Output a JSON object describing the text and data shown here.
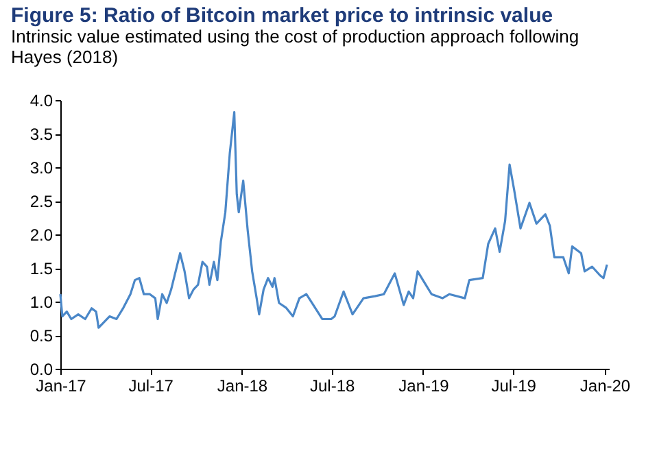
{
  "chart_data": {
    "type": "line",
    "title": "Figure 5: Ratio of Bitcoin market price to intrinsic value",
    "subtitle": "Intrinsic value estimated using the cost of production approach following Hayes (2018)",
    "x": [
      "2017-01-01",
      "2017-01-05",
      "2017-01-14",
      "2017-01-23",
      "2017-02-06",
      "2017-02-20",
      "2017-03-05",
      "2017-03-14",
      "2017-03-19",
      "2017-03-28",
      "2017-04-10",
      "2017-04-24",
      "2017-05-08",
      "2017-05-22",
      "2017-05-31",
      "2017-06-09",
      "2017-06-18",
      "2017-06-30",
      "2017-07-11",
      "2017-07-16",
      "2017-07-25",
      "2017-08-03",
      "2017-08-12",
      "2017-08-21",
      "2017-08-30",
      "2017-09-08",
      "2017-09-17",
      "2017-09-26",
      "2017-10-05",
      "2017-10-14",
      "2017-10-23",
      "2017-10-28",
      "2017-11-06",
      "2017-11-13",
      "2017-11-20",
      "2017-11-29",
      "2017-12-08",
      "2017-12-17",
      "2017-12-22",
      "2017-12-26",
      "2018-01-04",
      "2018-01-13",
      "2018-01-22",
      "2018-01-31",
      "2018-02-05",
      "2018-02-14",
      "2018-02-23",
      "2018-03-04",
      "2018-03-08",
      "2018-03-17",
      "2018-03-31",
      "2018-04-14",
      "2018-04-27",
      "2018-05-11",
      "2018-05-25",
      "2018-06-12",
      "2018-06-30",
      "2018-07-07",
      "2018-07-25",
      "2018-08-12",
      "2018-09-03",
      "2018-09-26",
      "2018-10-14",
      "2018-11-05",
      "2018-11-23",
      "2018-12-03",
      "2018-12-12",
      "2018-12-21",
      "2019-01-04",
      "2019-01-18",
      "2019-02-09",
      "2019-02-23",
      "2019-03-26",
      "2019-04-04",
      "2019-05-01",
      "2019-05-12",
      "2019-05-26",
      "2019-06-04",
      "2019-06-15",
      "2019-06-24",
      "2019-07-03",
      "2019-07-16",
      "2019-08-03",
      "2019-08-17",
      "2019-09-04",
      "2019-09-13",
      "2019-09-22",
      "2019-10-10",
      "2019-10-21",
      "2019-10-28",
      "2019-11-15",
      "2019-11-22",
      "2019-12-07",
      "2019-12-23",
      "2019-12-30",
      "2020-01-06"
    ],
    "series": [
      {
        "color": "#4a87c8",
        "values": [
          1.11,
          0.78,
          0.85,
          0.74,
          0.81,
          0.74,
          0.9,
          0.85,
          0.61,
          0.68,
          0.78,
          0.74,
          0.91,
          1.11,
          1.32,
          1.35,
          1.11,
          1.11,
          1.05,
          0.74,
          1.11,
          0.98,
          1.18,
          1.45,
          1.72,
          1.45,
          1.05,
          1.18,
          1.25,
          1.59,
          1.52,
          1.25,
          1.59,
          1.32,
          1.89,
          2.33,
          3.21,
          3.82,
          2.6,
          2.33,
          2.8,
          2.06,
          1.45,
          1.05,
          0.81,
          1.18,
          1.35,
          1.22,
          1.35,
          0.98,
          0.91,
          0.78,
          1.05,
          1.11,
          0.95,
          0.74,
          0.74,
          0.78,
          1.15,
          0.81,
          1.05,
          1.08,
          1.11,
          1.42,
          0.95,
          1.15,
          1.05,
          1.45,
          1.28,
          1.11,
          1.05,
          1.11,
          1.05,
          1.32,
          1.35,
          1.86,
          2.09,
          1.74,
          2.2,
          3.04,
          2.67,
          2.09,
          2.47,
          2.16,
          2.3,
          2.13,
          1.66,
          1.66,
          1.42,
          1.82,
          1.72,
          1.45,
          1.52,
          1.39,
          1.35,
          1.55
        ]
      }
    ],
    "xlim": [
      "2017-01-01",
      "2020-01-10"
    ],
    "xticks": [
      {
        "value": "2017-01-01",
        "label": "Jan-17"
      },
      {
        "value": "2017-07-01",
        "label": "Jul-17"
      },
      {
        "value": "2018-01-01",
        "label": "Jan-18"
      },
      {
        "value": "2018-07-01",
        "label": "Jul-18"
      },
      {
        "value": "2019-01-01",
        "label": "Jan-19"
      },
      {
        "value": "2019-07-01",
        "label": "Jul-19"
      },
      {
        "value": "2020-01-01",
        "label": "Jan-20"
      }
    ],
    "ylim": [
      0,
      4
    ],
    "yticks": [
      {
        "value": 0,
        "label": "0.0"
      },
      {
        "value": 0.5,
        "label": "0.5"
      },
      {
        "value": 1,
        "label": "1.0"
      },
      {
        "value": 1.5,
        "label": "1.5"
      },
      {
        "value": 2,
        "label": "2.0"
      },
      {
        "value": 2.5,
        "label": "2.5"
      },
      {
        "value": 3,
        "label": "3.0"
      },
      {
        "value": 3.5,
        "label": "3.5"
      },
      {
        "value": 4,
        "label": "4.0"
      }
    ],
    "grid": false,
    "marker": "none",
    "line_style": "solid"
  }
}
